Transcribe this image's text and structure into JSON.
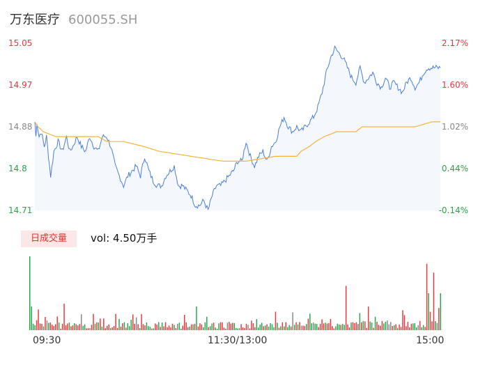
{
  "header": {
    "name": "万东医疗",
    "code": "600055.SH"
  },
  "volume_panel": {
    "tab_label": "日成交量",
    "vol_label": "vol: 4.50万手"
  },
  "colors": {
    "price_line": "#4a7fd9",
    "avg_line": "#f5b43c",
    "up": "#e8383d",
    "down": "#22a84a",
    "flat": "#888888",
    "price_area": "#f4f7fc"
  },
  "chart_data": [
    {
      "type": "line",
      "title": "",
      "series": [
        {
          "name": "",
          "role": "price"
        },
        {
          "name": "",
          "role": "average"
        }
      ],
      "price_keypoints": [
        [
          0,
          14.89
        ],
        [
          1,
          14.86
        ],
        [
          2,
          14.89
        ],
        [
          4,
          14.86
        ],
        [
          6,
          14.87
        ],
        [
          9,
          14.84
        ],
        [
          11,
          14.86
        ],
        [
          13,
          14.82
        ],
        [
          15,
          14.78
        ],
        [
          18,
          14.83
        ],
        [
          22,
          14.85
        ],
        [
          26,
          14.83
        ],
        [
          30,
          14.86
        ],
        [
          33,
          14.83
        ],
        [
          36,
          14.84
        ],
        [
          40,
          14.86
        ],
        [
          44,
          14.84
        ],
        [
          48,
          14.83
        ],
        [
          52,
          14.86
        ],
        [
          56,
          14.84
        ],
        [
          60,
          14.83
        ],
        [
          64,
          14.86
        ],
        [
          68,
          14.86
        ],
        [
          72,
          14.84
        ],
        [
          76,
          14.8
        ],
        [
          80,
          14.78
        ],
        [
          84,
          14.76
        ],
        [
          88,
          14.78
        ],
        [
          92,
          14.79
        ],
        [
          96,
          14.8
        ],
        [
          100,
          14.78
        ],
        [
          104,
          14.82
        ],
        [
          108,
          14.79
        ],
        [
          112,
          14.77
        ],
        [
          116,
          14.76
        ],
        [
          120,
          14.76
        ],
        [
          124,
          14.78
        ],
        [
          128,
          14.79
        ],
        [
          132,
          14.8
        ],
        [
          136,
          14.76
        ],
        [
          140,
          14.76
        ],
        [
          144,
          14.75
        ],
        [
          148,
          14.74
        ],
        [
          152,
          14.72
        ],
        [
          156,
          14.72
        ],
        [
          160,
          14.73
        ],
        [
          164,
          14.71
        ],
        [
          168,
          14.74
        ],
        [
          172,
          14.76
        ],
        [
          176,
          14.76
        ],
        [
          180,
          14.77
        ],
        [
          184,
          14.78
        ],
        [
          188,
          14.79
        ],
        [
          192,
          14.81
        ],
        [
          196,
          14.81
        ],
        [
          200,
          14.85
        ],
        [
          204,
          14.82
        ],
        [
          208,
          14.8
        ],
        [
          212,
          14.82
        ],
        [
          216,
          14.83
        ],
        [
          220,
          14.81
        ],
        [
          224,
          14.84
        ],
        [
          228,
          14.85
        ],
        [
          232,
          14.88
        ],
        [
          236,
          14.9
        ],
        [
          240,
          14.88
        ],
        [
          244,
          14.87
        ],
        [
          248,
          14.88
        ],
        [
          252,
          14.87
        ],
        [
          256,
          14.88
        ],
        [
          260,
          14.89
        ],
        [
          264,
          14.9
        ],
        [
          268,
          14.92
        ],
        [
          272,
          14.95
        ],
        [
          276,
          14.99
        ],
        [
          280,
          15.02
        ],
        [
          284,
          15.04
        ],
        [
          288,
          15.03
        ],
        [
          292,
          15.02
        ],
        [
          296,
          15.0
        ],
        [
          300,
          14.98
        ],
        [
          304,
          14.97
        ],
        [
          308,
          15.0
        ],
        [
          312,
          14.97
        ],
        [
          316,
          14.98
        ],
        [
          320,
          14.99
        ],
        [
          324,
          14.97
        ],
        [
          328,
          14.96
        ],
        [
          332,
          14.98
        ],
        [
          336,
          14.96
        ],
        [
          340,
          14.97
        ],
        [
          344,
          14.96
        ],
        [
          348,
          14.95
        ],
        [
          352,
          14.97
        ],
        [
          356,
          14.98
        ],
        [
          360,
          14.96
        ],
        [
          364,
          14.97
        ],
        [
          368,
          14.99
        ],
        [
          372,
          15.0
        ],
        [
          376,
          15.0
        ],
        [
          380,
          15.0
        ],
        [
          384,
          15.0
        ]
      ],
      "average_keypoints": [
        [
          0,
          14.89
        ],
        [
          3,
          14.88
        ],
        [
          8,
          14.87
        ],
        [
          20,
          14.86
        ],
        [
          40,
          14.86
        ],
        [
          60,
          14.86
        ],
        [
          68,
          14.85
        ],
        [
          84,
          14.85
        ],
        [
          103,
          14.84
        ],
        [
          118,
          14.83
        ],
        [
          148,
          14.82
        ],
        [
          178,
          14.81
        ],
        [
          200,
          14.81
        ],
        [
          228,
          14.82
        ],
        [
          236,
          14.82
        ],
        [
          248,
          14.82
        ],
        [
          252,
          14.83
        ],
        [
          260,
          14.84
        ],
        [
          266,
          14.85
        ],
        [
          274,
          14.86
        ],
        [
          286,
          14.87
        ],
        [
          292,
          14.87
        ],
        [
          304,
          14.87
        ],
        [
          310,
          14.88
        ],
        [
          320,
          14.88
        ],
        [
          340,
          14.88
        ],
        [
          360,
          14.88
        ],
        [
          376,
          14.89
        ],
        [
          384,
          14.89
        ]
      ],
      "ylim": [
        14.71,
        15.05
      ],
      "y_ticks": [
        15.05,
        14.97,
        14.88,
        14.8,
        14.71
      ],
      "y_tick_colors": [
        "#e8383d",
        "#e8383d",
        "#888888",
        "#22a84a",
        "#22a84a"
      ],
      "right_ticks": [
        "2.17%",
        "1.60%",
        "1.02%",
        "0.44%",
        "-0.14%"
      ],
      "right_tick_colors": [
        "#e8383d",
        "#e8383d",
        "#888888",
        "#22a84a",
        "#22a84a"
      ],
      "x_ticks": [
        "09:30",
        "11:30/13:00",
        "15:00"
      ]
    },
    {
      "type": "bar",
      "title": "",
      "description": "1-minute trading volume histogram below the price chart (240 bars; bar values are relative heights, red=up, green=down, gray=flat)",
      "peak_reference": "tallest bar ≈ 1.0",
      "highlighted_bars": [
        {
          "minute": 0,
          "value": 1.0,
          "direction": "down"
        },
        {
          "minute": 1,
          "value": 0.32,
          "direction": "down"
        },
        {
          "minute": 5,
          "value": 0.28,
          "direction": "up"
        },
        {
          "minute": 20,
          "value": 0.36,
          "direction": "up"
        },
        {
          "minute": 50,
          "value": 0.22,
          "direction": "up"
        },
        {
          "minute": 97,
          "value": 0.32,
          "direction": "down"
        },
        {
          "minute": 143,
          "value": 0.25,
          "direction": "up"
        },
        {
          "minute": 184,
          "value": 0.6,
          "direction": "up"
        },
        {
          "minute": 197,
          "value": 0.32,
          "direction": "up"
        },
        {
          "minute": 217,
          "value": 0.27,
          "direction": "up"
        },
        {
          "minute": 231,
          "value": 0.9,
          "direction": "up"
        },
        {
          "minute": 232,
          "value": 0.5,
          "direction": "down"
        },
        {
          "minute": 233,
          "value": 0.25,
          "direction": "up"
        },
        {
          "minute": 235,
          "value": 0.78,
          "direction": "up"
        },
        {
          "minute": 238,
          "value": 0.3,
          "direction": "up"
        },
        {
          "minute": 239,
          "value": 0.5,
          "direction": "down"
        }
      ],
      "ylim": [
        0,
        1.0
      ]
    }
  ]
}
